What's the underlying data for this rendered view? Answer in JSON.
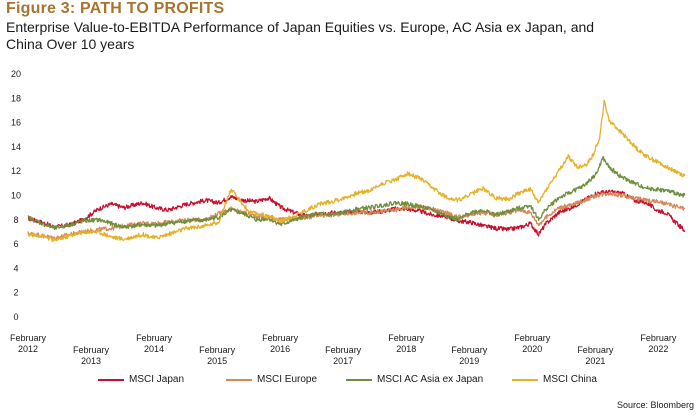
{
  "header": {
    "figure_label": "Figure 3: PATH TO PROFITS",
    "title": "Enterprise Value-to-EBITDA Performance of Japan Equities vs. Europe, AC Asia ex Japan, and China Over 10 years"
  },
  "source": "Source: Bloomberg",
  "chart_data": {
    "type": "line",
    "title": "Enterprise Value-to-EBITDA Performance of Japan Equities vs. Europe, AC Asia ex Japan, and China Over 10 years",
    "xlabel": "",
    "ylabel": "",
    "ylim": [
      0,
      20
    ],
    "yticks": [
      0,
      2,
      4,
      6,
      8,
      10,
      12,
      14,
      16,
      18,
      20
    ],
    "xlim": [
      2012.08,
      2022.55
    ],
    "xticks": [
      {
        "pos": 2012.08,
        "label": [
          "February",
          "2012"
        ]
      },
      {
        "pos": 2013.08,
        "label": [
          "February",
          "2013"
        ]
      },
      {
        "pos": 2014.08,
        "label": [
          "February",
          "2014"
        ]
      },
      {
        "pos": 2015.08,
        "label": [
          "February",
          "2015"
        ]
      },
      {
        "pos": 2016.08,
        "label": [
          "February",
          "2016"
        ]
      },
      {
        "pos": 2017.08,
        "label": [
          "February",
          "2017"
        ]
      },
      {
        "pos": 2018.08,
        "label": [
          "February",
          "2018"
        ]
      },
      {
        "pos": 2019.08,
        "label": [
          "February",
          "2019"
        ]
      },
      {
        "pos": 2020.08,
        "label": [
          "February",
          "2020"
        ]
      },
      {
        "pos": 2021.08,
        "label": [
          "February",
          "2021"
        ]
      },
      {
        "pos": 2022.08,
        "label": [
          "February",
          "2022"
        ]
      }
    ],
    "grid": false,
    "legend_position": "bottom",
    "series": [
      {
        "name": "MSCI Japan",
        "color": "#c8102e",
        "points": [
          [
            2012.08,
            8.1
          ],
          [
            2012.3,
            7.8
          ],
          [
            2012.5,
            7.4
          ],
          [
            2012.75,
            7.6
          ],
          [
            2012.95,
            8.0
          ],
          [
            2013.2,
            8.9
          ],
          [
            2013.4,
            9.3
          ],
          [
            2013.6,
            9.0
          ],
          [
            2013.9,
            9.4
          ],
          [
            2014.1,
            9.0
          ],
          [
            2014.3,
            8.8
          ],
          [
            2014.6,
            9.3
          ],
          [
            2014.9,
            9.6
          ],
          [
            2015.1,
            9.4
          ],
          [
            2015.3,
            9.9
          ],
          [
            2015.5,
            9.6
          ],
          [
            2015.7,
            9.5
          ],
          [
            2015.9,
            9.8
          ],
          [
            2016.1,
            9.0
          ],
          [
            2016.3,
            8.6
          ],
          [
            2016.5,
            8.3
          ],
          [
            2016.7,
            8.5
          ],
          [
            2016.9,
            8.6
          ],
          [
            2017.1,
            8.6
          ],
          [
            2017.3,
            8.7
          ],
          [
            2017.5,
            8.6
          ],
          [
            2017.7,
            8.7
          ],
          [
            2017.9,
            8.9
          ],
          [
            2018.1,
            8.9
          ],
          [
            2018.3,
            8.7
          ],
          [
            2018.5,
            8.4
          ],
          [
            2018.7,
            8.3
          ],
          [
            2018.9,
            7.9
          ],
          [
            2019.1,
            7.8
          ],
          [
            2019.3,
            7.5
          ],
          [
            2019.5,
            7.3
          ],
          [
            2019.7,
            7.2
          ],
          [
            2019.9,
            7.4
          ],
          [
            2020.05,
            7.7
          ],
          [
            2020.18,
            6.8
          ],
          [
            2020.3,
            7.7
          ],
          [
            2020.5,
            8.6
          ],
          [
            2020.7,
            9.0
          ],
          [
            2020.9,
            9.6
          ],
          [
            2021.1,
            10.2
          ],
          [
            2021.3,
            10.3
          ],
          [
            2021.5,
            10.2
          ],
          [
            2021.7,
            9.6
          ],
          [
            2021.9,
            9.4
          ],
          [
            2022.05,
            8.8
          ],
          [
            2022.2,
            8.6
          ],
          [
            2022.35,
            7.8
          ],
          [
            2022.5,
            7.1
          ]
        ]
      },
      {
        "name": "MSCI Europe",
        "color": "#d4895a",
        "points": [
          [
            2012.08,
            6.9
          ],
          [
            2012.3,
            6.7
          ],
          [
            2012.5,
            6.5
          ],
          [
            2012.75,
            6.8
          ],
          [
            2012.95,
            7.0
          ],
          [
            2013.2,
            7.2
          ],
          [
            2013.4,
            7.3
          ],
          [
            2013.6,
            7.5
          ],
          [
            2013.9,
            7.7
          ],
          [
            2014.1,
            7.7
          ],
          [
            2014.3,
            7.8
          ],
          [
            2014.6,
            8.0
          ],
          [
            2014.9,
            8.0
          ],
          [
            2015.1,
            8.5
          ],
          [
            2015.3,
            8.9
          ],
          [
            2015.5,
            8.6
          ],
          [
            2015.7,
            8.3
          ],
          [
            2015.9,
            8.3
          ],
          [
            2016.1,
            8.0
          ],
          [
            2016.3,
            8.1
          ],
          [
            2016.5,
            8.2
          ],
          [
            2016.7,
            8.3
          ],
          [
            2016.9,
            8.4
          ],
          [
            2017.1,
            8.5
          ],
          [
            2017.3,
            8.6
          ],
          [
            2017.5,
            8.6
          ],
          [
            2017.7,
            8.7
          ],
          [
            2017.9,
            8.8
          ],
          [
            2018.1,
            9.0
          ],
          [
            2018.3,
            9.1
          ],
          [
            2018.5,
            8.9
          ],
          [
            2018.7,
            8.6
          ],
          [
            2018.9,
            8.2
          ],
          [
            2019.1,
            8.4
          ],
          [
            2019.3,
            8.6
          ],
          [
            2019.5,
            8.4
          ],
          [
            2019.7,
            8.6
          ],
          [
            2019.9,
            8.8
          ],
          [
            2020.05,
            8.6
          ],
          [
            2020.18,
            7.6
          ],
          [
            2020.3,
            8.2
          ],
          [
            2020.5,
            9.0
          ],
          [
            2020.7,
            9.2
          ],
          [
            2020.9,
            9.6
          ],
          [
            2021.1,
            10.0
          ],
          [
            2021.3,
            10.2
          ],
          [
            2021.5,
            10.0
          ],
          [
            2021.7,
            9.8
          ],
          [
            2021.9,
            9.6
          ],
          [
            2022.05,
            9.5
          ],
          [
            2022.2,
            9.3
          ],
          [
            2022.35,
            9.1
          ],
          [
            2022.5,
            8.9
          ]
        ]
      },
      {
        "name": "MSCI AC Asia ex Japan",
        "color": "#6f8f3a",
        "points": [
          [
            2012.08,
            8.2
          ],
          [
            2012.3,
            7.7
          ],
          [
            2012.5,
            7.3
          ],
          [
            2012.75,
            7.6
          ],
          [
            2012.95,
            7.9
          ],
          [
            2013.2,
            8.0
          ],
          [
            2013.4,
            7.7
          ],
          [
            2013.6,
            7.4
          ],
          [
            2013.9,
            7.6
          ],
          [
            2014.1,
            7.5
          ],
          [
            2014.3,
            7.7
          ],
          [
            2014.6,
            7.9
          ],
          [
            2014.9,
            8.0
          ],
          [
            2015.1,
            8.2
          ],
          [
            2015.3,
            8.8
          ],
          [
            2015.5,
            8.5
          ],
          [
            2015.7,
            8.0
          ],
          [
            2015.9,
            8.1
          ],
          [
            2016.1,
            7.6
          ],
          [
            2016.3,
            8.0
          ],
          [
            2016.5,
            8.3
          ],
          [
            2016.7,
            8.5
          ],
          [
            2016.9,
            8.4
          ],
          [
            2017.1,
            8.6
          ],
          [
            2017.3,
            8.9
          ],
          [
            2017.5,
            9.0
          ],
          [
            2017.7,
            9.2
          ],
          [
            2017.9,
            9.4
          ],
          [
            2018.1,
            9.3
          ],
          [
            2018.3,
            9.1
          ],
          [
            2018.5,
            8.8
          ],
          [
            2018.7,
            8.4
          ],
          [
            2018.9,
            8.0
          ],
          [
            2019.1,
            8.6
          ],
          [
            2019.3,
            8.8
          ],
          [
            2019.5,
            8.4
          ],
          [
            2019.7,
            8.7
          ],
          [
            2019.9,
            9.0
          ],
          [
            2020.05,
            9.2
          ],
          [
            2020.18,
            8.0
          ],
          [
            2020.3,
            8.9
          ],
          [
            2020.5,
            9.8
          ],
          [
            2020.7,
            10.3
          ],
          [
            2020.9,
            10.8
          ],
          [
            2021.1,
            11.8
          ],
          [
            2021.2,
            13.1
          ],
          [
            2021.3,
            12.3
          ],
          [
            2021.5,
            11.5
          ],
          [
            2021.7,
            11.0
          ],
          [
            2021.9,
            10.6
          ],
          [
            2022.05,
            10.5
          ],
          [
            2022.2,
            10.4
          ],
          [
            2022.35,
            10.2
          ],
          [
            2022.5,
            10.0
          ]
        ]
      },
      {
        "name": "MSCI China",
        "color": "#e6b12a",
        "points": [
          [
            2012.08,
            6.8
          ],
          [
            2012.3,
            6.7
          ],
          [
            2012.5,
            6.3
          ],
          [
            2012.75,
            6.7
          ],
          [
            2012.95,
            7.0
          ],
          [
            2013.2,
            7.0
          ],
          [
            2013.4,
            6.6
          ],
          [
            2013.6,
            6.4
          ],
          [
            2013.9,
            6.8
          ],
          [
            2014.1,
            6.5
          ],
          [
            2014.3,
            6.8
          ],
          [
            2014.6,
            7.3
          ],
          [
            2014.9,
            7.5
          ],
          [
            2015.1,
            7.8
          ],
          [
            2015.3,
            10.5
          ],
          [
            2015.45,
            9.5
          ],
          [
            2015.6,
            8.6
          ],
          [
            2015.8,
            8.4
          ],
          [
            2016.1,
            7.9
          ],
          [
            2016.3,
            8.3
          ],
          [
            2016.5,
            8.8
          ],
          [
            2016.7,
            9.3
          ],
          [
            2016.9,
            9.5
          ],
          [
            2017.1,
            9.8
          ],
          [
            2017.3,
            10.2
          ],
          [
            2017.5,
            10.4
          ],
          [
            2017.7,
            11.0
          ],
          [
            2017.9,
            11.3
          ],
          [
            2018.1,
            11.8
          ],
          [
            2018.3,
            11.4
          ],
          [
            2018.5,
            10.6
          ],
          [
            2018.7,
            9.9
          ],
          [
            2018.9,
            9.6
          ],
          [
            2019.1,
            10.1
          ],
          [
            2019.3,
            10.6
          ],
          [
            2019.5,
            9.8
          ],
          [
            2019.7,
            9.7
          ],
          [
            2019.9,
            10.3
          ],
          [
            2020.05,
            10.5
          ],
          [
            2020.18,
            9.4
          ],
          [
            2020.3,
            10.5
          ],
          [
            2020.5,
            12.0
          ],
          [
            2020.65,
            13.2
          ],
          [
            2020.8,
            12.3
          ],
          [
            2020.95,
            12.6
          ],
          [
            2021.05,
            13.4
          ],
          [
            2021.15,
            14.8
          ],
          [
            2021.22,
            17.7
          ],
          [
            2021.3,
            16.2
          ],
          [
            2021.45,
            15.4
          ],
          [
            2021.6,
            14.6
          ],
          [
            2021.75,
            13.8
          ],
          [
            2021.9,
            13.2
          ],
          [
            2022.05,
            12.8
          ],
          [
            2022.2,
            12.4
          ],
          [
            2022.35,
            12.0
          ],
          [
            2022.5,
            11.6
          ]
        ]
      }
    ]
  }
}
